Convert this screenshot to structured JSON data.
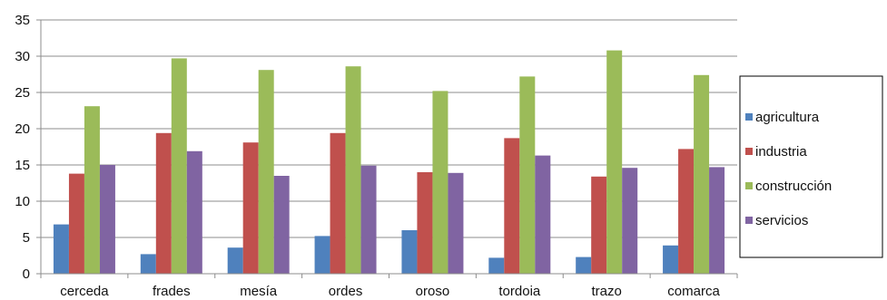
{
  "chart_data": {
    "type": "bar",
    "title": "",
    "xlabel": "",
    "ylabel": "",
    "categories": [
      "cerceda",
      "frades",
      "mesía",
      "ordes",
      "oroso",
      "tordoia",
      "trazo",
      "comarca"
    ],
    "ylim": [
      0,
      35
    ],
    "yticks": [
      0,
      5,
      10,
      15,
      20,
      25,
      30,
      35
    ],
    "grid": "horizontal",
    "legend_position": "right",
    "series": [
      {
        "name": "agricultura",
        "color": "#4F81BD",
        "values": [
          6.8,
          2.7,
          3.6,
          5.2,
          6.0,
          2.2,
          2.3,
          3.9
        ]
      },
      {
        "name": "industria",
        "color": "#C0504D",
        "values": [
          13.8,
          19.4,
          18.1,
          19.4,
          14.0,
          18.7,
          13.4,
          17.2
        ]
      },
      {
        "name": "construcción",
        "color": "#9BBB59",
        "values": [
          23.1,
          29.7,
          28.1,
          28.6,
          25.2,
          27.2,
          30.8,
          27.4
        ]
      },
      {
        "name": "servicios",
        "color": "#8064A2",
        "values": [
          15.0,
          16.9,
          13.5,
          14.9,
          13.9,
          16.3,
          14.6,
          14.7
        ]
      }
    ]
  }
}
